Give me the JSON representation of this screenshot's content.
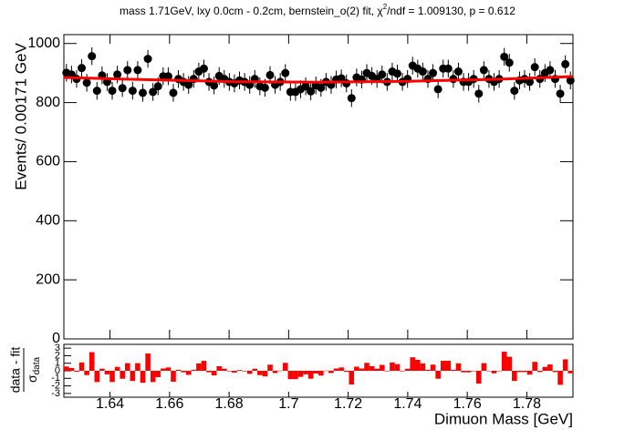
{
  "chart_data": {
    "type": "scatter",
    "title": {
      "before": "mass 1.71GeV, lxy 0.0cm - 0.2cm, bernstein_o(2) fit, χ",
      "sup": "2",
      "after": "/ndf = 1.009130, p = 0.612"
    },
    "x_label": "Dimuon Mass [GeV]",
    "y_label": "Events/ 0.00171 GeV",
    "xlim": [
      1.6245,
      1.7955
    ],
    "xticks": [
      1.64,
      1.66,
      1.68,
      1.7,
      1.72,
      1.74,
      1.76,
      1.78
    ],
    "ylim": [
      0,
      1030
    ],
    "yticks": [
      0,
      200,
      400,
      600,
      800,
      1000
    ],
    "x": [
      1.62536,
      1.62707,
      1.62878,
      1.63049,
      1.6322,
      1.63391,
      1.63562,
      1.63733,
      1.63904,
      1.64075,
      1.64246,
      1.64417,
      1.64588,
      1.64759,
      1.6493,
      1.65101,
      1.65272,
      1.65443,
      1.65614,
      1.65785,
      1.65956,
      1.66127,
      1.66298,
      1.66469,
      1.6664,
      1.66811,
      1.66982,
      1.67153,
      1.67324,
      1.67495,
      1.67666,
      1.67837,
      1.68008,
      1.68179,
      1.6835,
      1.68521,
      1.68692,
      1.68863,
      1.69034,
      1.69205,
      1.69376,
      1.69547,
      1.69718,
      1.69889,
      1.7006,
      1.70231,
      1.70402,
      1.70573,
      1.70744,
      1.70915,
      1.71086,
      1.71257,
      1.71428,
      1.71599,
      1.7177,
      1.71941,
      1.72112,
      1.72283,
      1.72454,
      1.72625,
      1.72796,
      1.72967,
      1.73138,
      1.73309,
      1.7348,
      1.73651,
      1.73822,
      1.73993,
      1.74164,
      1.74335,
      1.74506,
      1.74677,
      1.74848,
      1.75019,
      1.7519,
      1.75361,
      1.75532,
      1.75703,
      1.75874,
      1.76045,
      1.76216,
      1.76387,
      1.76558,
      1.76729,
      1.769,
      1.77071,
      1.77242,
      1.77413,
      1.77584,
      1.77755,
      1.77926,
      1.78097,
      1.78268,
      1.78439,
      1.7861,
      1.78781,
      1.78952,
      1.79123,
      1.79294,
      1.79465
    ],
    "series": [
      {
        "color": "#000000",
        "values": [
          901,
          895,
          880,
          917,
          867,
          957,
          840,
          892,
          870,
          840,
          895,
          849,
          910,
          840,
          910,
          833,
          948,
          836,
          855,
          889,
          889,
          833,
          880,
          870,
          860,
          880,
          905,
          915,
          870,
          858,
          890,
          880,
          870,
          865,
          875,
          870,
          860,
          880,
          855,
          850,
          893,
          860,
          870,
          900,
          836,
          836,
          845,
          855,
          838,
          858,
          850,
          870,
          860,
          878,
          882,
          865,
          815,
          885,
          878,
          900,
          890,
          880,
          895,
          870,
          905,
          898,
          870,
          880,
          925,
          915,
          905,
          880,
          900,
          845,
          915,
          915,
          880,
          905,
          870,
          870,
          880,
          830,
          910,
          880,
          870,
          880,
          955,
          935,
          840,
          875,
          880,
          870,
          920,
          880,
          900,
          910,
          880,
          830,
          930,
          875
        ],
        "errors": [
          30,
          30,
          30,
          30,
          30,
          30,
          30,
          30,
          30,
          30,
          30,
          30,
          30,
          30,
          30,
          30,
          30,
          30,
          30,
          30,
          30,
          30,
          30,
          30,
          30,
          30,
          30,
          30,
          30,
          30,
          30,
          30,
          30,
          30,
          30,
          30,
          30,
          30,
          30,
          30,
          30,
          30,
          30,
          30,
          30,
          30,
          30,
          30,
          30,
          30,
          30,
          30,
          30,
          30,
          30,
          30,
          30,
          30,
          30,
          30,
          30,
          30,
          30,
          30,
          30,
          30,
          30,
          30,
          30,
          30,
          30,
          30,
          30,
          30,
          30,
          30,
          30,
          30,
          30,
          30,
          30,
          30,
          30,
          30,
          30,
          30,
          30,
          30,
          30,
          30,
          30,
          30,
          30,
          30,
          30,
          30,
          30,
          30,
          30,
          30
        ]
      }
    ],
    "fit": {
      "color": "#ff0000",
      "x": [
        1.6245,
        1.65,
        1.68,
        1.71,
        1.74,
        1.77,
        1.7955
      ],
      "values": [
        885,
        878,
        871,
        869,
        872,
        879,
        888
      ]
    },
    "residuals": {
      "color": "#ff0000",
      "label": {
        "numerator": "data - fit",
        "denominator": "σ",
        "denominator_sub": "data"
      },
      "ylim": [
        -3.5,
        3.5
      ],
      "yticks": [
        -3,
        -2,
        -1,
        0,
        1,
        2,
        3
      ],
      "values": [
        0.57,
        0.37,
        -0.14,
        1.11,
        -0.57,
        2.47,
        -1.49,
        0.27,
        -0.47,
        -1.49,
        0.51,
        -1.05,
        1.01,
        -1.35,
        1.01,
        -1.59,
        2.3,
        -1.49,
        -0.84,
        0.3,
        0.44,
        -1.45,
        0.14,
        -0.2,
        -0.54,
        0.14,
        0.98,
        1.32,
        -0.2,
        -0.61,
        0.61,
        0.27,
        -0.07,
        -0.24,
        0.1,
        -0.07,
        -0.41,
        0.27,
        -0.57,
        -0.74,
        0.81,
        -0.3,
        0.03,
        1.05,
        -1.11,
        -1.11,
        -0.81,
        -0.47,
        -1.05,
        -0.37,
        -0.64,
        0.03,
        -0.3,
        0.3,
        0.44,
        -0.14,
        -1.82,
        0.54,
        0.3,
        1.05,
        0.61,
        0.27,
        0.78,
        -0.07,
        1.11,
        0.88,
        -0.07,
        0.27,
        1.79,
        1.45,
        0.98,
        0.14,
        0.81,
        -1.05,
        1.32,
        1.32,
        0.14,
        0.98,
        -0.2,
        -0.2,
        0,
        -1.69,
        1.01,
        0,
        -0.34,
        0,
        2.53,
        1.86,
        -1.35,
        -0.17,
        -0.17,
        -0.51,
        1.18,
        -0.17,
        0.51,
        0.84,
        -0.17,
        -1.86,
        1.52,
        -0.34
      ]
    }
  }
}
